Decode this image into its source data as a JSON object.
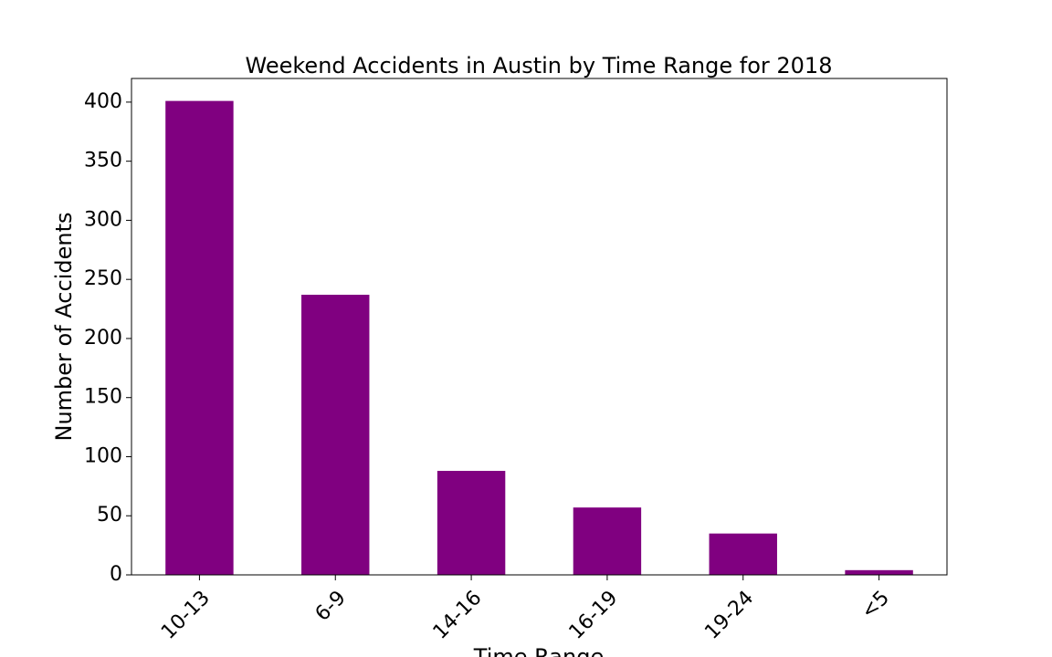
{
  "chart_data": {
    "type": "bar",
    "title": "Weekend Accidents in Austin by Time Range for 2018",
    "xlabel": "Time Range",
    "ylabel": "Number of Accidents",
    "categories": [
      "10-13",
      "6-9",
      "14-16",
      "16-19",
      "19-24",
      "<5"
    ],
    "values": [
      401,
      237,
      88,
      57,
      35,
      4
    ],
    "ylim": [
      0,
      420
    ],
    "yticks": [
      0,
      50,
      100,
      150,
      200,
      250,
      300,
      350,
      400
    ],
    "grid": false,
    "legend": "none",
    "bar_color": "#800080",
    "x_tick_rotation": 45
  }
}
